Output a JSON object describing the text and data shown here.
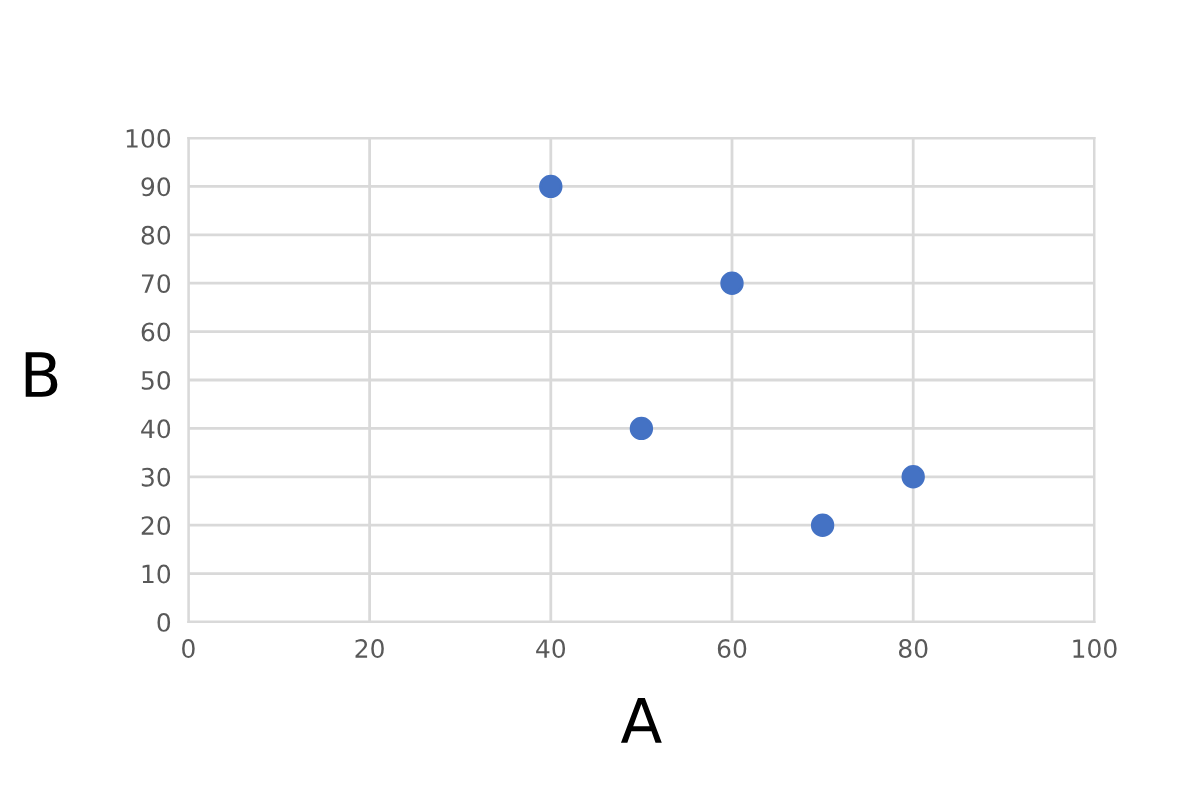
{
  "chart_data": {
    "type": "scatter",
    "xlabel": "A",
    "ylabel": "B",
    "x": [
      40,
      50,
      60,
      70,
      80
    ],
    "series": [
      {
        "color": "#4472c4",
        "values": [
          90,
          40,
          70,
          20,
          30
        ]
      }
    ],
    "xlim": [
      0,
      100
    ],
    "ylim": [
      0,
      100
    ],
    "xticks": [
      0,
      20,
      40,
      60,
      80,
      100
    ],
    "yticks": [
      0,
      10,
      20,
      30,
      40,
      50,
      60,
      70,
      80,
      90,
      100
    ],
    "grid": true,
    "marker": "circle"
  }
}
